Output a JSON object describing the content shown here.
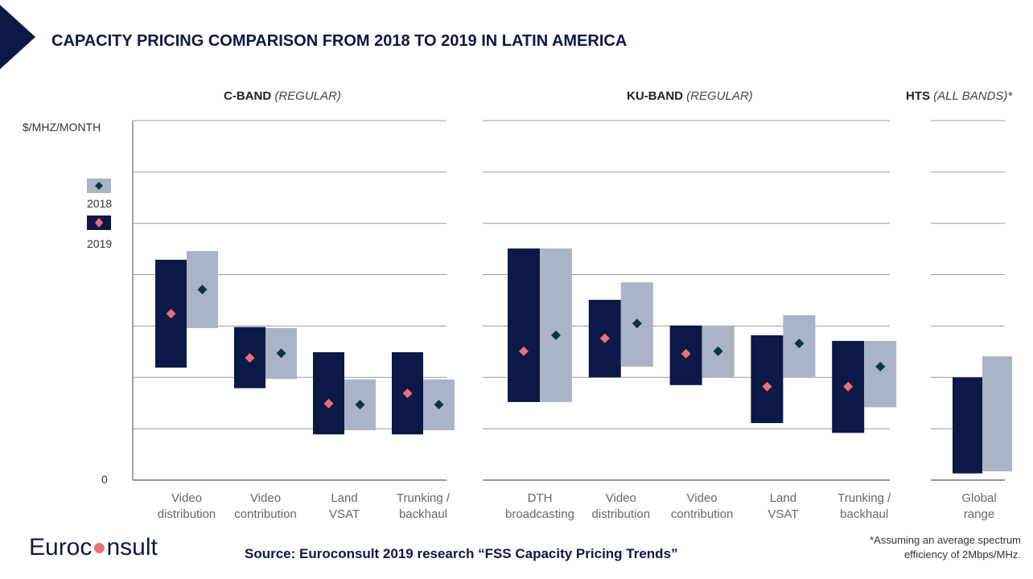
{
  "title": "CAPACITY PRICING COMPARISON FROM 2018 TO 2019 IN LATIN AMERICA",
  "source": "Source: Euroconsult 2019 research “FSS Capacity Pricing Trends”",
  "footnote": [
    "*Assuming an average spectrum",
    "efficiency of 2Mbps/MHz."
  ],
  "logo": "Euroconsult",
  "colors": {
    "2019_bar": "#0c1846",
    "2018_bar": "#aab4c6",
    "2019_marker": "#e8707a",
    "2018_marker": "#0e3340",
    "grid": "#888888"
  },
  "chart_data": {
    "type": "range-bar",
    "ylabel": "$/MHZ/MONTH",
    "y_tick_labels": [
      "0"
    ],
    "ylim": [
      0,
      7
    ],
    "y_units": "gridline units (axis unlabeled except 0)",
    "grid": true,
    "legend": {
      "placement": "left",
      "entries": [
        "2018",
        "2019"
      ]
    },
    "panels": [
      {
        "band": "C-BAND",
        "qualifier": "(REGULAR)",
        "categories": [
          [
            "Video",
            "distribution"
          ],
          [
            "Video",
            "contribution"
          ],
          [
            "Land",
            "VSAT"
          ],
          [
            "Trunking /",
            "backhaul"
          ]
        ],
        "series": [
          {
            "name": "2019",
            "low": [
              2.19,
              1.79,
              0.89,
              0.89
            ],
            "high": [
              4.29,
              2.98,
              2.49,
              2.49
            ],
            "mid": [
              3.24,
              2.38,
              1.49,
              1.69
            ]
          },
          {
            "name": "2018",
            "low": [
              2.96,
              1.97,
              0.97,
              0.97
            ],
            "high": [
              4.46,
              2.96,
              1.96,
              1.96
            ],
            "mid": [
              3.71,
              2.47,
              1.47,
              1.47
            ]
          }
        ]
      },
      {
        "band": "KU-BAND",
        "qualifier": "(REGULAR)",
        "categories": [
          [
            "DTH",
            "broadcasting"
          ],
          [
            "Video",
            "distribution"
          ],
          [
            "Video",
            "contribution"
          ],
          [
            "Land",
            "VSAT"
          ],
          [
            "Trunking /",
            "backhaul"
          ]
        ],
        "series": [
          {
            "name": "2019",
            "low": [
              1.52,
              2.0,
              1.85,
              1.11,
              0.92
            ],
            "high": [
              4.51,
              3.51,
              3.01,
              2.82,
              2.71
            ],
            "mid": [
              2.51,
              2.76,
              2.46,
              1.82,
              1.82
            ]
          },
          {
            "name": "2018",
            "low": [
              1.52,
              2.21,
              2.0,
              2.0,
              1.42
            ],
            "high": [
              4.51,
              3.85,
              3.01,
              3.21,
              2.71
            ],
            "mid": [
              2.82,
              3.05,
              2.51,
              2.66,
              2.21
            ]
          }
        ]
      },
      {
        "band": "HTS",
        "qualifier": "(ALL BANDS)*",
        "categories": [
          [
            "Global",
            "range"
          ]
        ],
        "series": [
          {
            "name": "2019",
            "low": [
              0.13
            ],
            "high": [
              2.0
            ],
            "mid": [
              null
            ]
          },
          {
            "name": "2018",
            "low": [
              0.17
            ],
            "high": [
              2.41
            ],
            "mid": [
              null
            ]
          }
        ]
      }
    ]
  }
}
